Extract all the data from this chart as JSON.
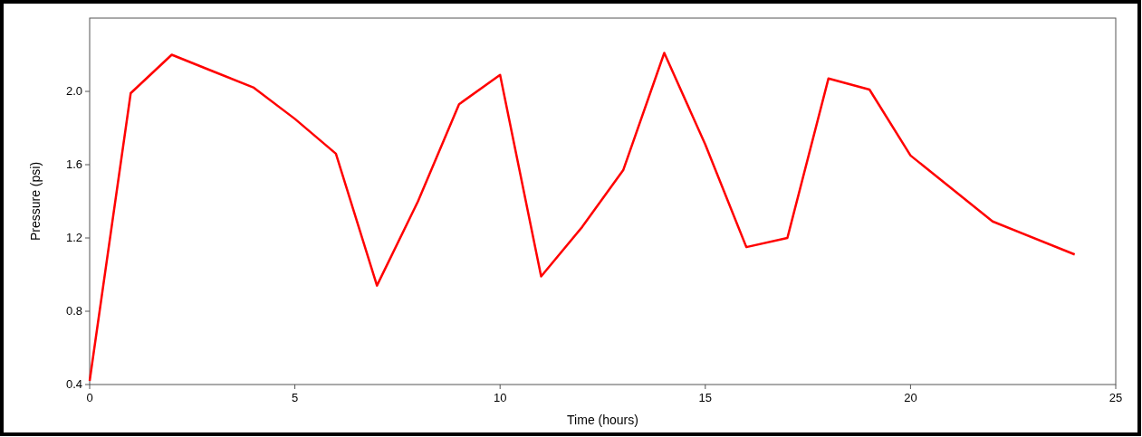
{
  "chart_data": {
    "type": "line",
    "xlabel": "Time (hours)",
    "ylabel": "Pressure (psi)",
    "x": [
      0,
      1,
      2,
      3,
      4,
      5,
      6,
      7,
      8,
      9,
      10,
      11,
      12,
      13,
      14,
      15,
      16,
      17,
      18,
      19,
      20,
      22,
      24
    ],
    "series": [
      {
        "color": "#ff0000",
        "values": [
          0.42,
          1.99,
          2.2,
          2.11,
          2.02,
          1.85,
          1.66,
          0.94,
          1.4,
          1.93,
          2.09,
          0.99,
          1.26,
          1.57,
          2.21,
          1.71,
          1.15,
          1.2,
          2.07,
          2.01,
          1.65,
          1.29,
          1.11
        ]
      }
    ],
    "xlim": [
      0,
      25
    ],
    "xticks": [
      0,
      5,
      10,
      15,
      20,
      25
    ],
    "ylim": [
      0.4,
      2.4
    ],
    "yticks": [
      0.4,
      0.8,
      1.2,
      1.6,
      {
        "value": 2,
        "label": "2.0"
      }
    ],
    "grid": false,
    "line_style": "solid"
  }
}
